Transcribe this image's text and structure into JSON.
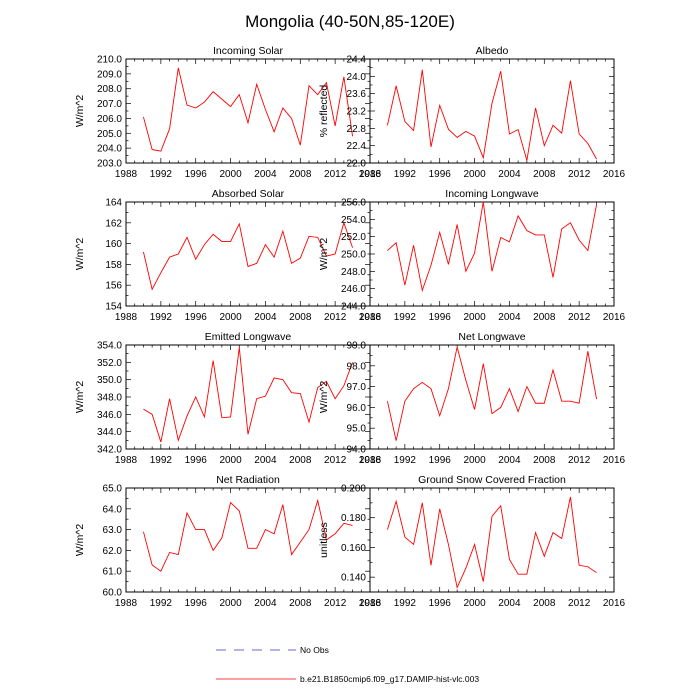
{
  "figure_title": "Mongolia (40-50N,85-120E)",
  "legend": {
    "no_obs_label": "No Obs",
    "model_label": "b.e21.B1850cmip6.f09_g17.DAMIP-hist-vlc.003",
    "model_color": "#ff0000",
    "obs_color": "#6a6acd"
  },
  "chart_data": [
    {
      "type": "line",
      "title": "Incoming Solar",
      "ylabel": "W/m^2",
      "xlim": [
        1988,
        2016
      ],
      "xticks": [
        "1988",
        "1992",
        "1996",
        "2000",
        "2004",
        "2008",
        "2012",
        "2016"
      ],
      "ylim": [
        203.0,
        210.0
      ],
      "yticks": [
        "203.0",
        "204.0",
        "205.0",
        "206.0",
        "207.0",
        "208.0",
        "209.0",
        "210.0"
      ],
      "x": [
        1990,
        1991,
        1992,
        1993,
        1994,
        1995,
        1996,
        1997,
        1998,
        1999,
        2000,
        2001,
        2002,
        2003,
        2004,
        2005,
        2006,
        2007,
        2008,
        2009,
        2010,
        2011,
        2012,
        2013,
        2014
      ],
      "series": [
        {
          "name": "b.e21.B1850cmip6.f09_g17.DAMIP-hist-vlc.003",
          "values": [
            206.1,
            203.9,
            203.8,
            205.3,
            209.4,
            206.9,
            206.7,
            207.1,
            207.8,
            207.3,
            206.8,
            207.6,
            205.7,
            208.3,
            206.6,
            205.1,
            206.7,
            206.0,
            204.2,
            208.2,
            207.6,
            208.4,
            205.5,
            208.8,
            204.8
          ]
        }
      ]
    },
    {
      "type": "line",
      "title": "Albedo",
      "ylabel": "% reflected",
      "xlim": [
        1988,
        2016
      ],
      "xticks": [
        "1988",
        "1992",
        "1996",
        "2000",
        "2004",
        "2008",
        "2012",
        "2016"
      ],
      "ylim": [
        22.0,
        24.4
      ],
      "yticks": [
        "22.0",
        "22.4",
        "22.8",
        "23.2",
        "23.6",
        "24.0",
        "24.4"
      ],
      "x": [
        1990,
        1991,
        1992,
        1993,
        1994,
        1995,
        1996,
        1997,
        1998,
        1999,
        2000,
        2001,
        2002,
        2003,
        2004,
        2005,
        2006,
        2007,
        2008,
        2009,
        2010,
        2011,
        2012,
        2013,
        2014
      ],
      "series": [
        {
          "name": "b.e21.B1850cmip6.f09_g17.DAMIP-hist-vlc.003",
          "values": [
            22.87,
            23.78,
            22.96,
            22.75,
            24.15,
            22.37,
            23.33,
            22.78,
            22.59,
            22.73,
            22.62,
            22.12,
            23.38,
            24.12,
            22.67,
            22.77,
            22.06,
            23.27,
            22.4,
            22.87,
            22.69,
            23.9,
            22.67,
            22.45,
            22.09
          ]
        }
      ]
    },
    {
      "type": "line",
      "title": "Absorbed Solar",
      "ylabel": "W/m^2",
      "xlim": [
        1988,
        2016
      ],
      "xticks": [
        "1988",
        "1992",
        "1996",
        "2000",
        "2004",
        "2008",
        "2012",
        "2016"
      ],
      "ylim": [
        154,
        164
      ],
      "yticks": [
        "154",
        "156",
        "158",
        "160",
        "162",
        "164"
      ],
      "x": [
        1990,
        1991,
        1992,
        1993,
        1994,
        1995,
        1996,
        1997,
        1998,
        1999,
        2000,
        2001,
        2002,
        2003,
        2004,
        2005,
        2006,
        2007,
        2008,
        2009,
        2010,
        2011,
        2012,
        2013,
        2014
      ],
      "series": [
        {
          "name": "b.e21.B1850cmip6.f09_g17.DAMIP-hist-vlc.003",
          "values": [
            159.2,
            155.6,
            157.2,
            158.7,
            159.0,
            160.6,
            158.5,
            159.9,
            160.9,
            160.2,
            160.2,
            161.9,
            157.8,
            158.1,
            159.9,
            158.7,
            161.2,
            158.1,
            158.6,
            160.7,
            160.6,
            158.8,
            159.0,
            162.0,
            159.6
          ]
        }
      ]
    },
    {
      "type": "line",
      "title": "Incoming Longwave",
      "ylabel": "W/m^2",
      "xlim": [
        1988,
        2016
      ],
      "xticks": [
        "1988",
        "1992",
        "1996",
        "2000",
        "2004",
        "2008",
        "2012",
        "2016"
      ],
      "ylim": [
        244.0,
        256.0
      ],
      "yticks": [
        "244.0",
        "246.0",
        "248.0",
        "250.0",
        "252.0",
        "254.0",
        "256.0"
      ],
      "x": [
        1990,
        1991,
        1992,
        1993,
        1994,
        1995,
        1996,
        1997,
        1998,
        1999,
        2000,
        2001,
        2002,
        2003,
        2004,
        2005,
        2006,
        2007,
        2008,
        2009,
        2010,
        2011,
        2012,
        2013,
        2014
      ],
      "series": [
        {
          "name": "b.e21.B1850cmip6.f09_g17.DAMIP-hist-vlc.003",
          "values": [
            250.4,
            251.3,
            246.4,
            251.0,
            245.8,
            248.7,
            252.5,
            248.8,
            253.4,
            248.0,
            250.1,
            256.0,
            248.0,
            251.9,
            251.4,
            254.4,
            252.7,
            252.2,
            252.2,
            247.3,
            252.9,
            253.6,
            251.6,
            250.4,
            255.7
          ]
        }
      ]
    },
    {
      "type": "line",
      "title": "Emitted Longwave",
      "ylabel": "W/m^2",
      "xlim": [
        1988,
        2016
      ],
      "xticks": [
        "1988",
        "1992",
        "1996",
        "2000",
        "2004",
        "2008",
        "2012",
        "2016"
      ],
      "ylim": [
        342.0,
        354.0
      ],
      "yticks": [
        "342.0",
        "344.0",
        "346.0",
        "348.0",
        "350.0",
        "352.0",
        "354.0"
      ],
      "x": [
        1990,
        1991,
        1992,
        1993,
        1994,
        1995,
        1996,
        1997,
        1998,
        1999,
        2000,
        2001,
        2002,
        2003,
        2004,
        2005,
        2006,
        2007,
        2008,
        2009,
        2010,
        2011,
        2012,
        2013,
        2014
      ],
      "series": [
        {
          "name": "b.e21.B1850cmip6.f09_g17.DAMIP-hist-vlc.003",
          "values": [
            346.6,
            346.0,
            342.8,
            347.8,
            343.0,
            345.8,
            348.0,
            345.7,
            352.2,
            345.6,
            345.7,
            353.7,
            343.7,
            347.8,
            348.1,
            350.2,
            350.0,
            348.5,
            348.4,
            345.1,
            349.1,
            349.8,
            347.8,
            349.3,
            352.0
          ]
        }
      ]
    },
    {
      "type": "line",
      "title": "Net Longwave",
      "ylabel": "W/m^2",
      "xlim": [
        1988,
        2016
      ],
      "xticks": [
        "1988",
        "1992",
        "1996",
        "2000",
        "2004",
        "2008",
        "2012",
        "2016"
      ],
      "ylim": [
        94.0,
        99.0
      ],
      "yticks": [
        "94.0",
        "95.0",
        "96.0",
        "97.0",
        "98.0",
        "99.0"
      ],
      "x": [
        1990,
        1991,
        1992,
        1993,
        1994,
        1995,
        1996,
        1997,
        1998,
        1999,
        2000,
        2001,
        2002,
        2003,
        2004,
        2005,
        2006,
        2007,
        2008,
        2009,
        2010,
        2011,
        2012,
        2013,
        2014
      ],
      "series": [
        {
          "name": "b.e21.B1850cmip6.f09_g17.DAMIP-hist-vlc.003",
          "values": [
            96.3,
            94.4,
            96.3,
            96.9,
            97.2,
            96.9,
            95.6,
            96.9,
            98.9,
            97.3,
            95.9,
            98.1,
            95.7,
            96.0,
            96.9,
            95.8,
            97.0,
            96.2,
            96.2,
            97.8,
            96.3,
            96.3,
            96.2,
            98.7,
            96.4
          ]
        }
      ]
    },
    {
      "type": "line",
      "title": "Net Radiation",
      "ylabel": "W/m^2",
      "xlim": [
        1988,
        2016
      ],
      "xticks": [
        "1988",
        "1992",
        "1996",
        "2000",
        "2004",
        "2008",
        "2012",
        "2016"
      ],
      "ylim": [
        60.0,
        65.0
      ],
      "yticks": [
        "60.0",
        "61.0",
        "62.0",
        "63.0",
        "64.0",
        "65.0"
      ],
      "x": [
        1990,
        1991,
        1992,
        1993,
        1994,
        1995,
        1996,
        1997,
        1998,
        1999,
        2000,
        2001,
        2002,
        2003,
        2004,
        2005,
        2006,
        2007,
        2008,
        2009,
        2010,
        2011,
        2012,
        2013,
        2014
      ],
      "series": [
        {
          "name": "b.e21.B1850cmip6.f09_g17.DAMIP-hist-vlc.003",
          "values": [
            62.9,
            61.3,
            61.0,
            61.9,
            61.8,
            63.8,
            63.0,
            63.0,
            62.0,
            62.6,
            64.3,
            63.9,
            62.1,
            62.1,
            63.0,
            62.8,
            64.2,
            61.8,
            62.4,
            63.0,
            64.4,
            62.5,
            62.8,
            63.3,
            63.2
          ]
        }
      ]
    },
    {
      "type": "line",
      "title": "Ground Snow Covered Fraction",
      "ylabel": "unitless",
      "xlim": [
        1988,
        2016
      ],
      "xticks": [
        "1988",
        "1992",
        "1996",
        "2000",
        "2004",
        "2008",
        "2012",
        "2016"
      ],
      "ylim": [
        0.13,
        0.2
      ],
      "yticks": [
        "0.140",
        "0.160",
        "0.180",
        "0.200"
      ],
      "ytick_values": [
        0.14,
        0.16,
        0.18,
        0.2
      ],
      "x": [
        1990,
        1991,
        1992,
        1993,
        1994,
        1995,
        1996,
        1997,
        1998,
        1999,
        2000,
        2001,
        2002,
        2003,
        2004,
        2005,
        2006,
        2007,
        2008,
        2009,
        2010,
        2011,
        2012,
        2013,
        2014
      ],
      "series": [
        {
          "name": "b.e21.B1850cmip6.f09_g17.DAMIP-hist-vlc.003",
          "values": [
            0.172,
            0.191,
            0.167,
            0.162,
            0.19,
            0.148,
            0.186,
            0.162,
            0.133,
            0.146,
            0.162,
            0.137,
            0.181,
            0.188,
            0.152,
            0.142,
            0.142,
            0.17,
            0.154,
            0.17,
            0.166,
            0.194,
            0.148,
            0.147,
            0.143
          ]
        }
      ]
    }
  ]
}
